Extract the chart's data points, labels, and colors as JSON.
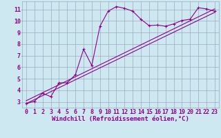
{
  "bg_color": "#cde8f0",
  "line_color": "#8B008B",
  "grid_color": "#a0a8c0",
  "xlabel": "Windchill (Refroidissement éolien,°C)",
  "xlim": [
    -0.5,
    23.5
  ],
  "ylim": [
    2.5,
    11.7
  ],
  "xticks": [
    0,
    1,
    2,
    3,
    4,
    5,
    6,
    7,
    8,
    9,
    10,
    11,
    12,
    13,
    14,
    15,
    16,
    17,
    18,
    19,
    20,
    21,
    22,
    23
  ],
  "yticks": [
    3,
    4,
    5,
    6,
    7,
    8,
    9,
    10,
    11
  ],
  "curve1_x": [
    0,
    1,
    2,
    3,
    4,
    5,
    6,
    7,
    8,
    9,
    10,
    11,
    12,
    13,
    14,
    15,
    16,
    17,
    18,
    19,
    20,
    21,
    22,
    23
  ],
  "curve1_y": [
    2.85,
    3.05,
    3.75,
    3.45,
    4.65,
    4.65,
    5.35,
    7.55,
    6.15,
    9.55,
    10.85,
    11.25,
    11.1,
    10.85,
    10.15,
    9.6,
    9.65,
    9.55,
    9.75,
    10.05,
    10.15,
    11.15,
    11.05,
    10.85
  ],
  "line2_x": [
    0,
    23
  ],
  "line2_y": [
    2.85,
    10.75
  ],
  "line3_x": [
    0,
    23
  ],
  "line3_y": [
    3.1,
    11.05
  ],
  "xlabel_fontsize": 6.5,
  "tick_fontsize": 6.0,
  "figwidth": 3.2,
  "figheight": 2.0,
  "dpi": 100
}
